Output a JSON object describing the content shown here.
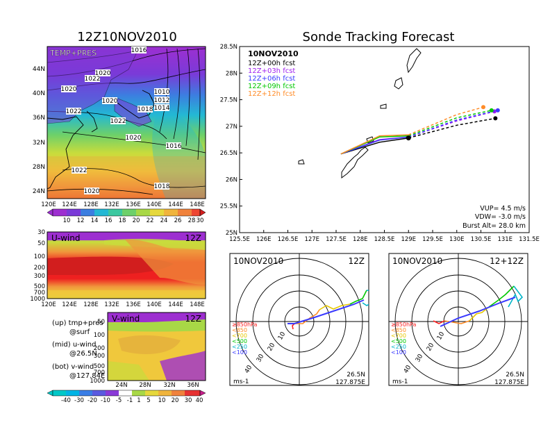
{
  "left_title": "12Z10NOV2010",
  "right_title": "Sonde Tracking Forecast",
  "map_panel": {
    "label": "TEMP+PRES",
    "x_ticks": [
      "120E",
      "124E",
      "128E",
      "132E",
      "136E",
      "140E",
      "144E",
      "148E"
    ],
    "y_ticks": [
      "44N",
      "40N",
      "36N",
      "32N",
      "28N",
      "24N"
    ],
    "isobars": [
      "1016",
      "1020",
      "1022",
      "1020",
      "1010",
      "1012",
      "1014",
      "1018",
      "1022",
      "1020",
      "1016",
      "1022",
      "1018",
      "1020",
      "1022",
      "1020"
    ],
    "colorbar": [
      "10",
      "12",
      "14",
      "16",
      "18",
      "20",
      "22",
      "24",
      "26",
      "28",
      "30"
    ]
  },
  "u_panel": {
    "label": "U-wind",
    "time": "12Z",
    "y_ticks": [
      "30",
      "50",
      "100",
      "200",
      "300",
      "500",
      "700",
      "1000"
    ],
    "x_ticks": [
      "120E",
      "124E",
      "128E",
      "132E",
      "136E",
      "140E",
      "144E",
      "148E"
    ]
  },
  "v_panel": {
    "label": "V-wind",
    "time": "12Z",
    "y_ticks": [
      "50",
      "100",
      "200",
      "300",
      "500",
      "700",
      "1000"
    ],
    "x_ticks": [
      "24N",
      "28N",
      "32N",
      "36N"
    ]
  },
  "notes": {
    "up_a": "(up) tmp+pres",
    "up_b": "@surf",
    "mid_a": "(mid) u-wind",
    "mid_b": "@26.5N",
    "bot_a": "(bot) v-wind",
    "bot_b": "@127.84E"
  },
  "bottom_colorbar": [
    "-40",
    "-30",
    "-20",
    "-10",
    "-5",
    "-1",
    "1",
    "5",
    "10",
    "20",
    "30",
    "40"
  ],
  "track_panel": {
    "date": "10NOV2010",
    "x_ticks": [
      "125.5E",
      "126E",
      "126.5E",
      "127E",
      "127.5E",
      "128E",
      "128.5E",
      "129E",
      "129.5E",
      "130E",
      "130.5E",
      "131E",
      "131.5E"
    ],
    "y_ticks": [
      "28.5N",
      "28N",
      "27.5N",
      "27N",
      "26.5N",
      "26N",
      "25.5N",
      "25N"
    ],
    "vup": "VUP= 4.5 m/s",
    "vdw": "VDW= -3.0 m/s",
    "burst": "Burst Alt= 28.0 km"
  },
  "chart_data": {
    "type": "line",
    "title": "Sonde Tracking Forecast",
    "xlabel": "",
    "ylabel": "",
    "xlim": [
      125.5,
      131.5
    ],
    "ylim": [
      25.0,
      28.5
    ],
    "launch": {
      "lon": 129.0,
      "lat": 26.78
    },
    "series": [
      {
        "name": "12Z+00h fcst",
        "color": "#000000",
        "points": [
          [
            127.6,
            26.48
          ],
          [
            128.4,
            26.7
          ],
          [
            129.0,
            26.78
          ],
          [
            130.0,
            27.02
          ],
          [
            130.8,
            27.15
          ]
        ]
      },
      {
        "name": "12Z+03h fcst",
        "color": "#a020f0",
        "points": [
          [
            127.6,
            26.48
          ],
          [
            128.4,
            26.75
          ],
          [
            129.0,
            26.8
          ],
          [
            130.0,
            27.1
          ],
          [
            130.78,
            27.28
          ]
        ]
      },
      {
        "name": "12Z+06h fcst",
        "color": "#3a3aff",
        "points": [
          [
            127.6,
            26.48
          ],
          [
            128.4,
            26.74
          ],
          [
            129.0,
            26.8
          ],
          [
            130.0,
            27.12
          ],
          [
            130.85,
            27.3
          ]
        ]
      },
      {
        "name": "12Z+09h fcst",
        "color": "#00c800",
        "points": [
          [
            127.6,
            26.48
          ],
          [
            128.4,
            26.8
          ],
          [
            129.0,
            26.82
          ],
          [
            130.0,
            27.16
          ],
          [
            130.72,
            27.3
          ]
        ]
      },
      {
        "name": "12Z+12h fcst",
        "color": "#ff8c28",
        "points": [
          [
            127.6,
            26.48
          ],
          [
            128.4,
            26.82
          ],
          [
            129.0,
            26.84
          ],
          [
            130.0,
            27.22
          ],
          [
            130.55,
            27.36
          ]
        ]
      }
    ]
  },
  "hodo_left": {
    "date": "10NOV2010",
    "time": "12Z",
    "units": "ms-1",
    "lat": "26.5N",
    "lon": "127.875E",
    "rings": [
      "10",
      "20",
      "30",
      "40"
    ],
    "legend": [
      "≥850hPa",
      "<850",
      "<700",
      "<500",
      "<250",
      "<100"
    ]
  },
  "hodo_right": {
    "date": "10NOV2010",
    "time": "12+12Z",
    "units": "ms-1",
    "lat": "26.5N",
    "lon": "127.875E",
    "rings": [
      "10",
      "20",
      "30",
      "40"
    ],
    "legend": [
      "≥850hPa",
      "<850",
      "<700",
      "<500",
      "<250",
      "<100"
    ]
  },
  "colors": {
    "legend_levels": [
      "#ff2020",
      "#ff8c28",
      "#e6c800",
      "#00c800",
      "#00b4c8",
      "#3a3aff"
    ]
  }
}
